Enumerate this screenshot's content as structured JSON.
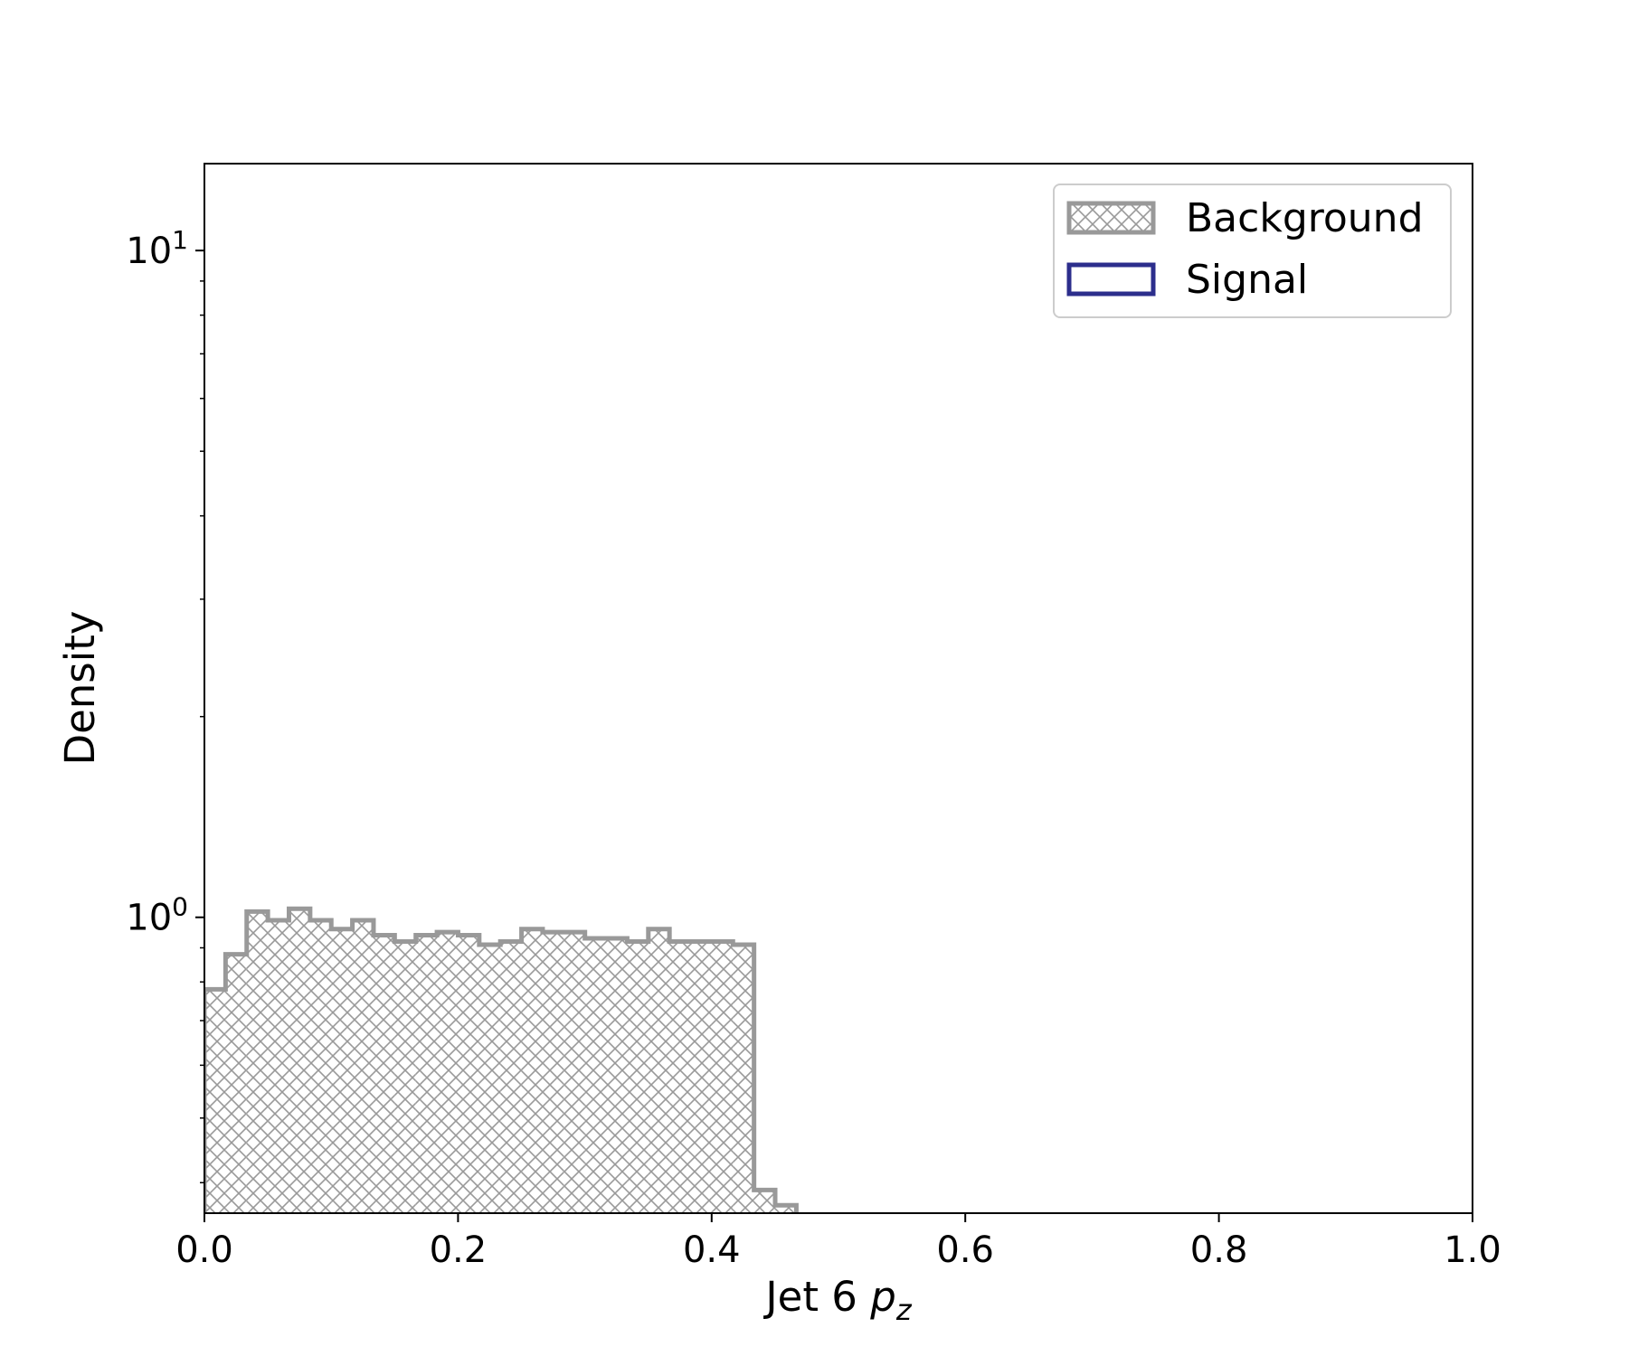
{
  "chart_data": {
    "type": "histogram",
    "xlabel": "Jet 6 p_z",
    "xlabel_main": "Jet 6 ",
    "xlabel_var": "p",
    "xlabel_sub": "z",
    "ylabel": "Density",
    "xlim": [
      0.0,
      1.0
    ],
    "ylim": [
      0.36,
      13.5
    ],
    "y_scale": "log",
    "grid": false,
    "legend_position": "top-right",
    "x_ticks": [
      "0.0",
      "0.2",
      "0.4",
      "0.6",
      "0.8",
      "1.0"
    ],
    "y_ticks": [
      {
        "value": 1,
        "base": "10",
        "exponent": "0"
      },
      {
        "value": 10,
        "base": "10",
        "exponent": "1"
      }
    ],
    "bin_width": 0.01667,
    "series": [
      {
        "name": "Background",
        "style": "hatched",
        "color": "#999999",
        "values": [
          0.78,
          0.88,
          1.02,
          0.99,
          1.03,
          0.99,
          0.96,
          0.99,
          0.94,
          0.92,
          0.94,
          0.95,
          0.94,
          0.91,
          0.92,
          0.96,
          0.95,
          0.95,
          0.93,
          0.93,
          0.92,
          0.96,
          0.92,
          0.92,
          0.92,
          0.91,
          0.39,
          0.37,
          0.0,
          0.0,
          0.0,
          0.0,
          0.0,
          0.0,
          0.0,
          0.0,
          0.0,
          0.0,
          0.0,
          0.0,
          0.0,
          0.0,
          0.0,
          0.0,
          0.0,
          0.0,
          0.0,
          0.0,
          0.0,
          0.0,
          0.0,
          0.0,
          0.0,
          0.0,
          0.0,
          0.0,
          0.0,
          0.0,
          0.0,
          0.0,
          0.0,
          0.0,
          0.0,
          0.0,
          0.0,
          0.0,
          0.0,
          0.0,
          0.0,
          0.0,
          0.0,
          0.0
        ]
      },
      {
        "name": "Signal",
        "style": "step",
        "color": "#2c2e8c",
        "values": []
      }
    ]
  }
}
